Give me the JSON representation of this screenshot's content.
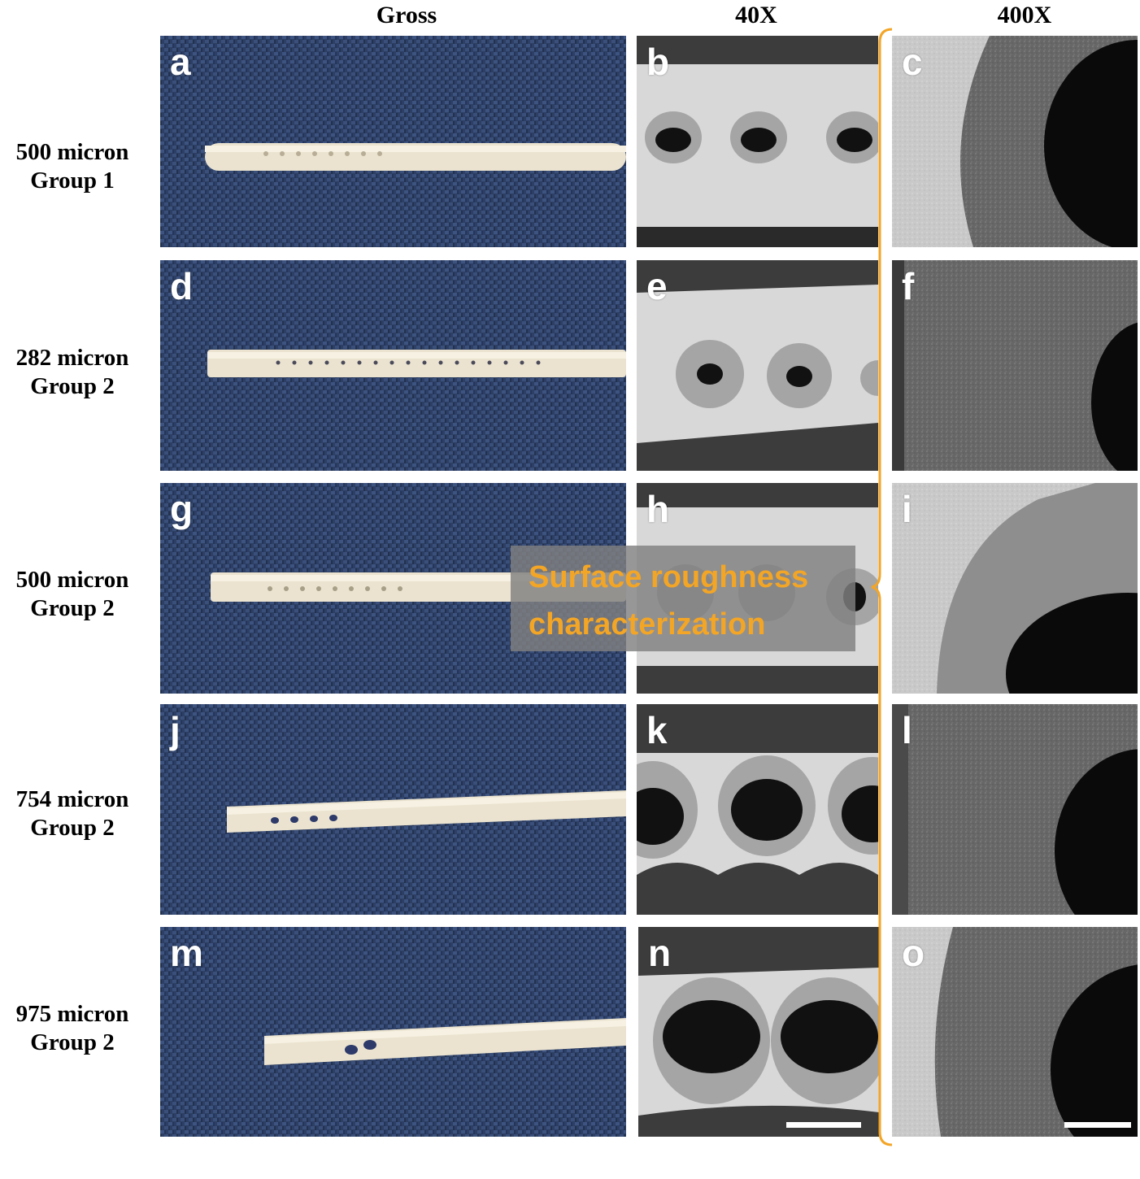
{
  "columns": [
    "Gross",
    "40X",
    "400X"
  ],
  "rows": [
    {
      "line1": "500 micron",
      "line2": "Group 1",
      "panels": [
        "a",
        "b",
        "c"
      ]
    },
    {
      "line1": "282 micron",
      "line2": "Group 2",
      "panels": [
        "d",
        "e",
        "f"
      ]
    },
    {
      "line1": "500 micron",
      "line2": "Group 2",
      "panels": [
        "g",
        "h",
        "i"
      ]
    },
    {
      "line1": "754 micron",
      "line2": "Group 2",
      "panels": [
        "j",
        "k",
        "l"
      ]
    },
    {
      "line1": "975 micron",
      "line2": "Group 2",
      "panels": [
        "m",
        "n",
        "o"
      ]
    }
  ],
  "callout": {
    "text": "Surface roughness\ncharacterization",
    "color": "#f3a526"
  },
  "colors": {
    "fabric": "#2f4166",
    "catheter": "#ebe3cf",
    "sem_light": "#d8d8d8",
    "sem_dark": "#6e6e6e",
    "bracket": "#f3a526"
  }
}
